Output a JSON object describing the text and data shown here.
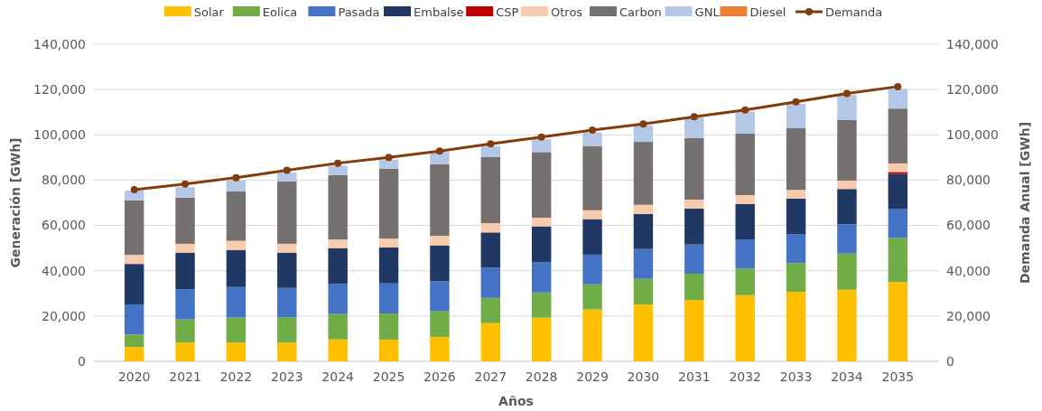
{
  "chart_data": {
    "type": "bar",
    "stacked": true,
    "xlabel": "Años",
    "ylabel": "Generación [GWh]",
    "y2label": "Demanda Anual [GWh]",
    "categories": [
      "2020",
      "2021",
      "2022",
      "2023",
      "2024",
      "2025",
      "2026",
      "2027",
      "2028",
      "2029",
      "2030",
      "2031",
      "2032",
      "2033",
      "2034",
      "2035"
    ],
    "series": [
      {
        "name": "Solar",
        "color": "#ffc000",
        "values": [
          6300,
          8300,
          8300,
          8300,
          9700,
          9600,
          10800,
          16900,
          19300,
          22900,
          25100,
          27100,
          29200,
          30700,
          31600,
          35000
        ]
      },
      {
        "name": "Eolica",
        "color": "#70ad47",
        "values": [
          5500,
          10200,
          11000,
          11200,
          11200,
          11500,
          11300,
          11100,
          11100,
          11100,
          11300,
          11600,
          11800,
          12700,
          16000,
          19500
        ]
      },
      {
        "name": "Pasada",
        "color": "#4472c4",
        "values": [
          13300,
          13300,
          13500,
          12900,
          13300,
          13300,
          13300,
          13400,
          13400,
          13100,
          13200,
          12900,
          12800,
          12800,
          12900,
          12900
        ]
      },
      {
        "name": "Embalse",
        "color": "#203864",
        "values": [
          17900,
          16200,
          16400,
          15600,
          15800,
          15900,
          15800,
          15500,
          15800,
          15700,
          15500,
          15800,
          15700,
          15600,
          15600,
          15300
        ]
      },
      {
        "name": "CSP",
        "color": "#c00000",
        "values": [
          0,
          0,
          0,
          0,
          0,
          0,
          0,
          0,
          0,
          0,
          0,
          0,
          0,
          0,
          0,
          900
        ]
      },
      {
        "name": "Otros",
        "color": "#f8cbad",
        "values": [
          4000,
          3900,
          4000,
          3900,
          3800,
          3900,
          4200,
          4100,
          3800,
          3900,
          4000,
          4000,
          3900,
          3900,
          3700,
          3800
        ]
      },
      {
        "name": "Carbon",
        "color": "#767171",
        "values": [
          24100,
          20400,
          21900,
          27500,
          28500,
          30900,
          31700,
          29300,
          29000,
          28400,
          27800,
          27200,
          27100,
          27200,
          26700,
          24200
        ]
      },
      {
        "name": "GNL",
        "color": "#b4c7e7",
        "values": [
          4300,
          4600,
          4700,
          4000,
          4100,
          4000,
          5300,
          4800,
          5700,
          5900,
          7200,
          9100,
          9900,
          10800,
          11200,
          8700
        ]
      },
      {
        "name": "Diesel",
        "color": "#ed7d31",
        "values": [
          0,
          0,
          0,
          0,
          0,
          0,
          0,
          0,
          0,
          0,
          0,
          0,
          0,
          0,
          0,
          null
        ]
      },
      {
        "name": "Demanda",
        "type": "line",
        "axis": "y2",
        "color": "#843c0c",
        "marker": "circle",
        "values": [
          75800,
          78300,
          81100,
          84400,
          87500,
          90000,
          92800,
          96000,
          99000,
          102100,
          104800,
          108000,
          111000,
          114600,
          118300,
          121300
        ]
      }
    ],
    "ylim": [
      0,
      140000
    ],
    "yticks": [
      {
        "value": 0,
        "label": "0"
      },
      {
        "value": 20000,
        "label": "20,000"
      },
      {
        "value": 40000,
        "label": "40,000"
      },
      {
        "value": 60000,
        "label": "60,000"
      },
      {
        "value": 80000,
        "label": "80,000"
      },
      {
        "value": 100000,
        "label": "100,000"
      },
      {
        "value": 120000,
        "label": "120,000"
      },
      {
        "value": 140000,
        "label": "140,000"
      }
    ],
    "y2lim": [
      0,
      140000
    ],
    "y2ticks": [
      {
        "value": 0,
        "label": "0"
      },
      {
        "value": 20000,
        "label": "20,000"
      },
      {
        "value": 40000,
        "label": "40,000"
      },
      {
        "value": 60000,
        "label": "60,000"
      },
      {
        "value": 80000,
        "label": "80,000"
      },
      {
        "value": 100000,
        "label": "100,000"
      },
      {
        "value": 120000,
        "label": "120,000"
      },
      {
        "value": 140000,
        "label": "140,000"
      }
    ],
    "grid": "y",
    "legend": "top"
  }
}
